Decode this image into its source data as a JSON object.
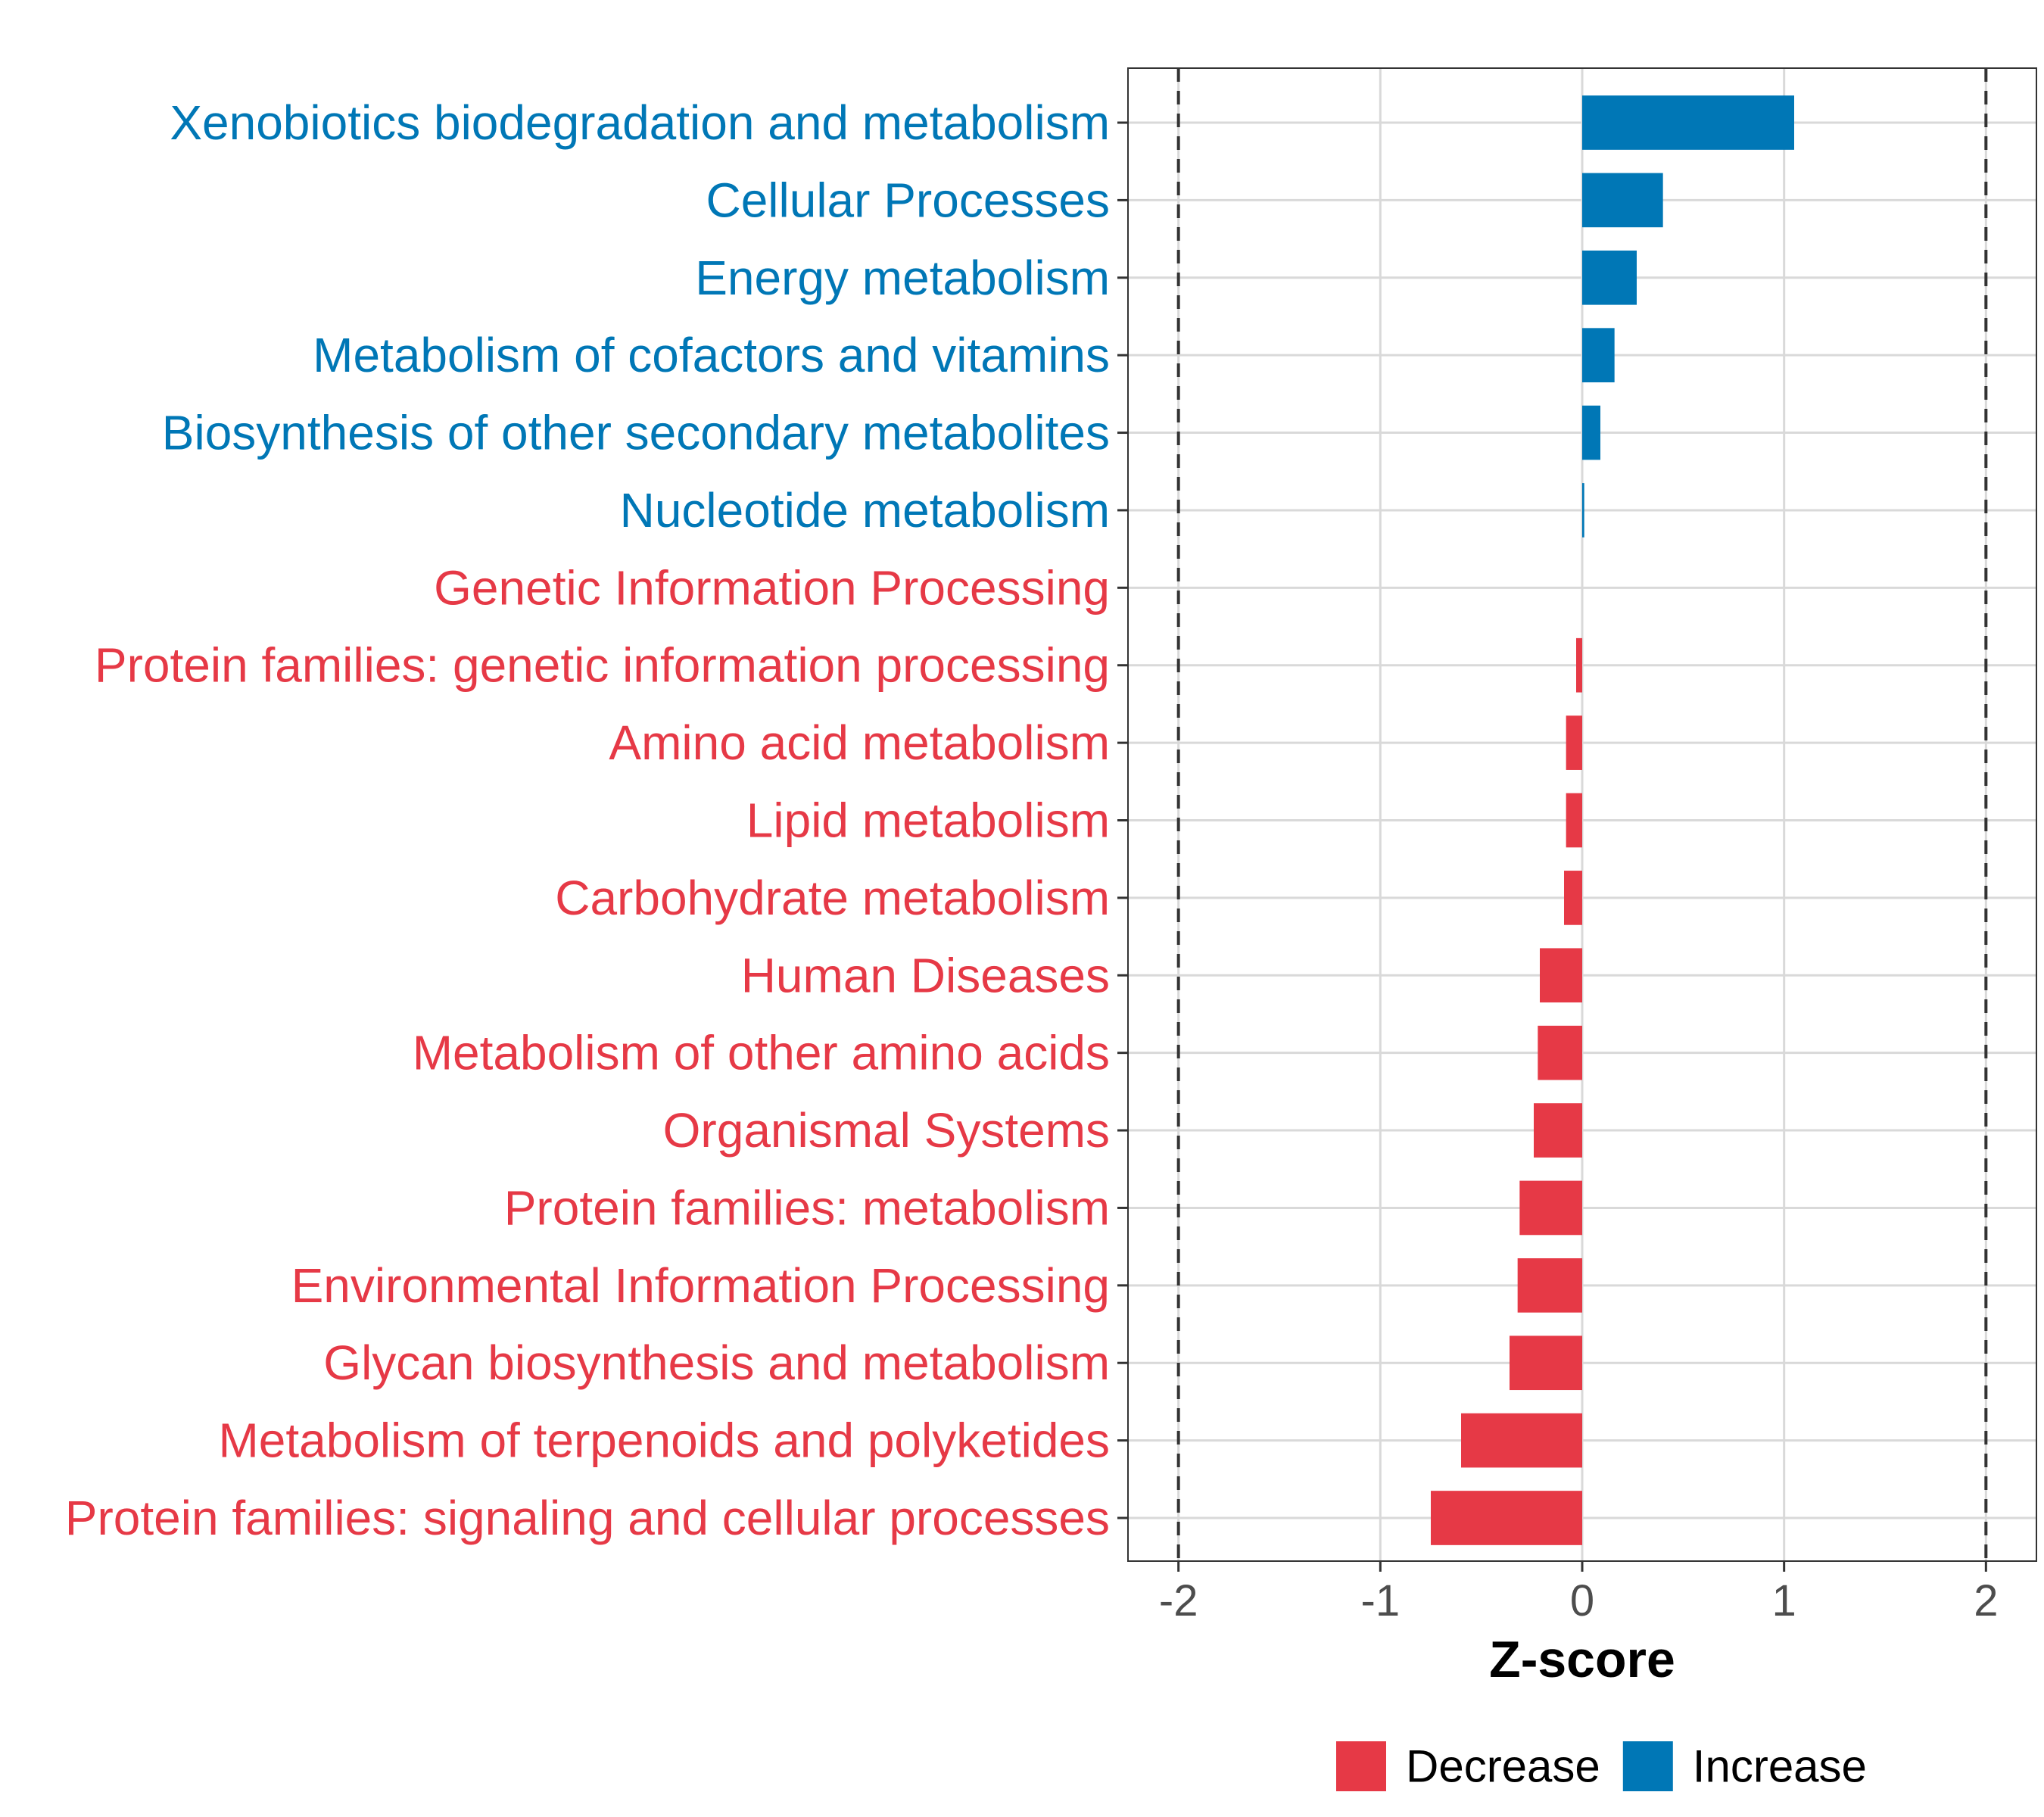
{
  "chart_data": {
    "type": "bar",
    "orientation": "horizontal",
    "title": "",
    "xlabel": "Z-score",
    "ylabel": "",
    "xlim": [
      -2.25,
      2.25
    ],
    "xticks": [
      -2,
      -1,
      0,
      1,
      2
    ],
    "xtick_labels": [
      "-2",
      "-1",
      "0",
      "1",
      "2"
    ],
    "reference_lines": [
      -2,
      2
    ],
    "grid": true,
    "categories": [
      "Xenobiotics biodegradation and metabolism",
      "Cellular Processes",
      "Energy metabolism",
      "Metabolism of cofactors and vitamins",
      "Biosynthesis of other secondary metabolites",
      "Nucleotide metabolism",
      "Genetic Information Processing",
      "Protein families: genetic information processing",
      "Amino acid metabolism",
      "Lipid metabolism",
      "Carbohydrate metabolism",
      "Human Diseases",
      "Metabolism of other amino acids",
      "Organismal Systems",
      "Protein families: metabolism",
      "Environmental Information Processing",
      "Glycan biosynthesis and metabolism",
      "Metabolism of terpenoids and polyketides",
      "Protein families: signaling and cellular processes"
    ],
    "values": [
      1.05,
      0.4,
      0.27,
      0.16,
      0.09,
      0.01,
      0.0,
      -0.03,
      -0.08,
      -0.08,
      -0.09,
      -0.21,
      -0.22,
      -0.24,
      -0.31,
      -0.32,
      -0.36,
      -0.6,
      -0.75
    ],
    "groups": [
      "Increase",
      "Increase",
      "Increase",
      "Increase",
      "Increase",
      "Increase",
      "Decrease",
      "Decrease",
      "Decrease",
      "Decrease",
      "Decrease",
      "Decrease",
      "Decrease",
      "Decrease",
      "Decrease",
      "Decrease",
      "Decrease",
      "Decrease",
      "Decrease"
    ],
    "legend": {
      "placement": "bottom",
      "items": [
        {
          "label": "Decrease",
          "color": "#e63946"
        },
        {
          "label": "Increase",
          "color": "#0077b6"
        }
      ]
    },
    "colors": {
      "Decrease": "#e63946",
      "Increase": "#0077b6"
    }
  }
}
